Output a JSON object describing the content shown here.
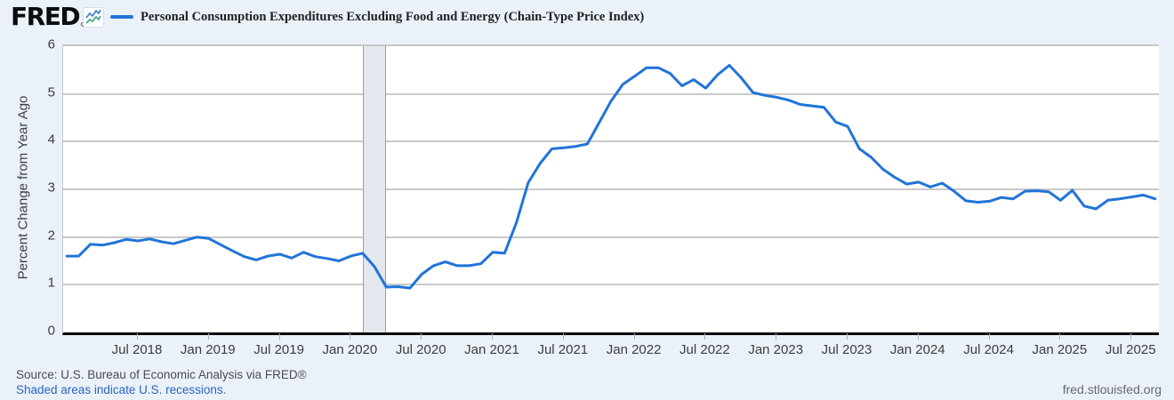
{
  "header": {
    "logo_text": "FRED",
    "logo_registered": "®",
    "series_label": "Personal Consumption Expenditures Excluding Food and Energy (Chain-Type Price Index)"
  },
  "footer": {
    "source_text": "Source: U.S. Bureau of Economic Analysis via FRED®",
    "recession_note": "Shaded areas indicate U.S. recessions.",
    "watermark": "fred.stlouisfed.org"
  },
  "colors": {
    "line": "#2074d8",
    "page_background": "#ebf1f9",
    "plot_background": "#ffffff",
    "gridline": "#c9c9c9",
    "recession_fill": "#e3e8ee",
    "recession_border": "#9d9d9d",
    "axis_line": "#000000",
    "link_blue": "#2a65c0"
  },
  "chart_data": {
    "type": "line",
    "title": "Personal Consumption Expenditures Excluding Food and Energy (Chain-Type Price Index)",
    "ylabel": "Percent Change from Year Ago",
    "xlabel": "",
    "ylim": [
      0,
      6
    ],
    "y_ticks": [
      0,
      1,
      2,
      3,
      4,
      5,
      6
    ],
    "x_tick_labels": [
      "Jul 2018",
      "Jan 2019",
      "Jul 2019",
      "Jan 2020",
      "Jul 2020",
      "Jan 2021",
      "Jul 2021",
      "Jan 2022",
      "Jul 2022",
      "Jan 2023",
      "Jul 2023",
      "Jan 2024",
      "Jul 2024",
      "Jan 2025",
      "Jul 2025"
    ],
    "grid": "horizontal",
    "legend_position": "top",
    "frequency": "monthly",
    "x_start_label": "Jan 2018",
    "x_end_label": "Sep 2025",
    "recession_band": {
      "start": "Feb 2020",
      "end": "Apr 2020"
    },
    "series": [
      {
        "name": "Personal Consumption Expenditures Excluding Food and Energy (Chain-Type Price Index)",
        "values": [
          1.6,
          1.6,
          1.85,
          1.83,
          1.88,
          1.95,
          1.92,
          1.96,
          1.9,
          1.86,
          1.93,
          2.0,
          1.97,
          1.84,
          1.71,
          1.59,
          1.52,
          1.6,
          1.64,
          1.56,
          1.68,
          1.59,
          1.55,
          1.5,
          1.6,
          1.66,
          1.38,
          0.95,
          0.96,
          0.93,
          1.22,
          1.4,
          1.48,
          1.4,
          1.4,
          1.44,
          1.68,
          1.66,
          2.3,
          3.14,
          3.54,
          3.85,
          3.87,
          3.9,
          3.95,
          4.4,
          4.85,
          5.2,
          5.37,
          5.55,
          5.55,
          5.43,
          5.17,
          5.3,
          5.12,
          5.4,
          5.6,
          5.34,
          5.03,
          4.97,
          4.93,
          4.87,
          4.78,
          4.75,
          4.72,
          4.41,
          4.32,
          3.85,
          3.67,
          3.42,
          3.25,
          3.11,
          3.15,
          3.05,
          3.13,
          2.96,
          2.76,
          2.73,
          2.75,
          2.83,
          2.8,
          2.96,
          2.97,
          2.95,
          2.77,
          2.98,
          2.65,
          2.59,
          2.77,
          2.8,
          2.84,
          2.88,
          2.8
        ]
      }
    ]
  }
}
